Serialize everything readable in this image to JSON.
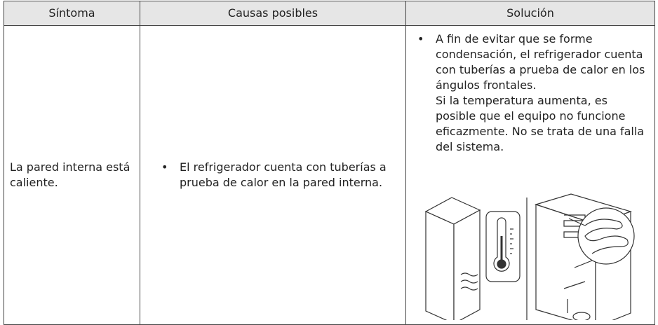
{
  "table": {
    "headers": [
      "Síntoma",
      "Causas posibles",
      "Solución"
    ],
    "rows": [
      {
        "symptom": "La pared interna está caliente.",
        "causes": [
          "El refrigerador cuenta con tuberías a prueba de calor en la pared interna."
        ],
        "solution": [
          "A fin de evitar que se forme condensación, el refrigerador cuenta con tuberías a prueba de calor en los ángulos frontales.",
          "Si la temperatura aumenta, es posible que el equipo no funcione eficazmente. No se trata de una falla del sistema."
        ]
      }
    ]
  }
}
